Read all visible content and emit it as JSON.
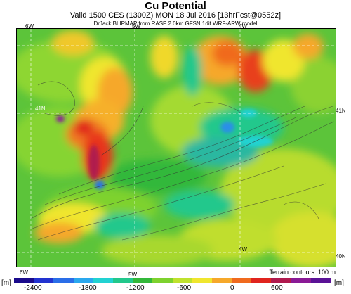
{
  "header": {
    "title": "Cu Potential",
    "valid_line": "Valid 1500 CES (1300Z) MON 18 Jul 2016 [13hrFcst@0552z]",
    "model_line": "DrJack BLIPMAP from RASP 2.0km GFSN 1dif WRF-ARW model"
  },
  "map": {
    "lon_labels": {
      "top_left": "6W",
      "top_mid": "5W",
      "top_right": "4W",
      "bottom_left": "6W",
      "bottom_mid": "5W",
      "bottom_right": "4W"
    },
    "lat_labels": {
      "left_41n": "41N",
      "right_41n": "41N",
      "right_40n": "40N"
    },
    "terrain_note": "Terrain contours: 100 m"
  },
  "legend": {
    "unit_left": "[m]",
    "unit_right": "[m]",
    "ticks": [
      "-2400",
      "-1800",
      "-1200",
      "-600",
      "0",
      "600"
    ],
    "colors": [
      "#1a0a8c",
      "#2233d0",
      "#2a6ee8",
      "#2aa8ee",
      "#22d2d2",
      "#22c88c",
      "#33b83a",
      "#7ed22e",
      "#bfe22e",
      "#f0e62e",
      "#f6a82a",
      "#f06a1e",
      "#e0241e",
      "#b01a4e",
      "#8a1a96",
      "#5a1296"
    ]
  }
}
